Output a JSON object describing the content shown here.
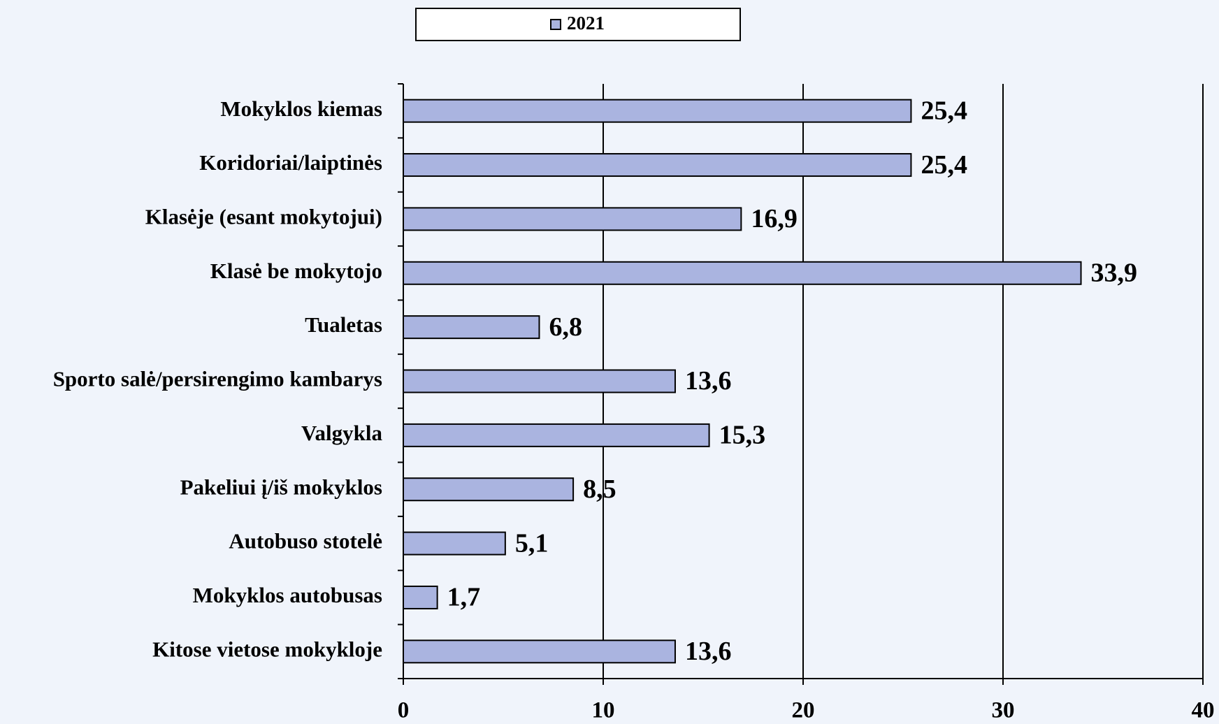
{
  "chart_data": {
    "type": "bar",
    "orientation": "horizontal",
    "categories": [
      "Mokyklos kiemas",
      "Koridoriai/laiptinės",
      "Klasėje (esant mokytojui)",
      "Klasė be mokytojo",
      "Tualetas",
      "Sporto salė/persirengimo kambarys",
      "Valgykla",
      "Pakeliui į/iš mokyklos",
      "Autobuso stotelė",
      "Mokyklos autobusas",
      "Kitose vietose mokykloje"
    ],
    "series": [
      {
        "name": "2021",
        "color": "#aab4e0",
        "values": [
          25.4,
          25.4,
          16.9,
          33.9,
          6.8,
          13.6,
          15.3,
          8.5,
          5.1,
          1.7,
          13.6
        ],
        "value_labels": [
          "25,4",
          "25,4",
          "16,9",
          "33,9",
          "6,8",
          "13,6",
          "15,3",
          "8,5",
          "5,1",
          "1,7",
          "13,6"
        ]
      }
    ],
    "xlim": [
      0,
      40
    ],
    "xticks": [
      0,
      10,
      20,
      30,
      40
    ],
    "grid": true,
    "legend": "top"
  }
}
